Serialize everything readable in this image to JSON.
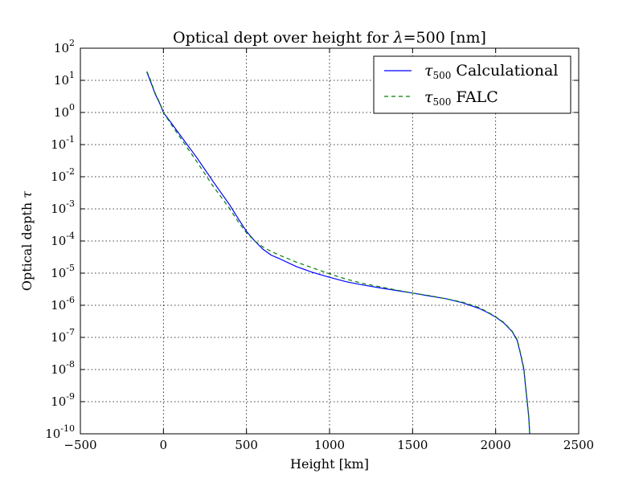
{
  "chart_data": {
    "type": "line",
    "title_prefix": "Optical dept over height for ",
    "title_symbol": "λ",
    "title_suffix": "=500 [nm]",
    "xlabel": "Height [km]",
    "ylabel_text": "Optical depth ",
    "ylabel_symbol": "τ",
    "xlim": [
      -500,
      2500
    ],
    "ylim_exponents": [
      -10,
      2
    ],
    "y_scale": "log",
    "grid": true,
    "legend_position": "top-right",
    "x_ticks": [
      "−500",
      "0",
      "500",
      "1000",
      "1500",
      "2000",
      "2500"
    ],
    "x_tick_values": [
      -500,
      0,
      500,
      1000,
      1500,
      2000,
      2500
    ],
    "y_tick_base": "10",
    "y_tick_exponents": [
      "2",
      "1",
      "0",
      "-1",
      "-2",
      "-3",
      "-4",
      "-5",
      "-6",
      "-7",
      "-8",
      "-9",
      "-10"
    ],
    "series": [
      {
        "name_symbol": "τ",
        "name_sub": "500",
        "name_text": "Calculational",
        "color": "#0000ff",
        "style": "solid",
        "x": [
          -100,
          -80,
          -50,
          -20,
          0,
          50,
          100,
          200,
          300,
          400,
          450,
          500,
          550,
          600,
          650,
          700,
          800,
          900,
          1000,
          1100,
          1200,
          1300,
          1400,
          1500,
          1600,
          1700,
          1800,
          1900,
          1950,
          2000,
          2050,
          2100,
          2130,
          2150,
          2170,
          2180,
          2190,
          2200,
          2205,
          2210,
          2215,
          2218
        ],
        "y": [
          18,
          10,
          3.8,
          1.8,
          1.0,
          0.45,
          0.2,
          0.04,
          0.007,
          0.0013,
          0.0005,
          0.0002,
          0.0001,
          5.5e-05,
          3.6e-05,
          2.8e-05,
          1.6e-05,
          1.05e-05,
          7.4e-06,
          5.4e-06,
          4.3e-06,
          3.5e-06,
          2.9e-06,
          2.4e-06,
          1.95e-06,
          1.6e-06,
          1.2e-06,
          8e-07,
          6e-07,
          4.3e-07,
          2.8e-07,
          1.5e-07,
          8e-08,
          3e-08,
          1e-08,
          3e-09,
          1e-09,
          3e-10,
          1e-10,
          5e-11,
          2e-11,
          1e-11
        ]
      },
      {
        "name_symbol": "τ",
        "name_sub": "500",
        "name_text": "FALC",
        "color": "#008000",
        "style": "dashed",
        "x": [
          -100,
          -80,
          -50,
          -20,
          0,
          50,
          100,
          200,
          300,
          400,
          450,
          500,
          550,
          600,
          650,
          700,
          800,
          900,
          1000,
          1100,
          1200,
          1300,
          1400,
          1500,
          1600,
          1700,
          1800,
          1900,
          1950,
          2000,
          2050,
          2100,
          2130,
          2150,
          2170,
          2180,
          2190,
          2200,
          2205,
          2210,
          2215,
          2218
        ],
        "y": [
          19,
          11,
          4.0,
          1.9,
          1.0,
          0.4,
          0.17,
          0.03,
          0.005,
          0.001,
          0.0004,
          0.00018,
          0.0001,
          6.5e-05,
          4.7e-05,
          3.6e-05,
          2.2e-05,
          1.45e-05,
          9.5e-06,
          6.5e-06,
          4.8e-06,
          3.8e-06,
          3e-06,
          2.4e-06,
          2e-06,
          1.6e-06,
          1.25e-06,
          8.5e-07,
          6.2e-07,
          4.4e-07,
          2.9e-07,
          1.55e-07,
          8.5e-08,
          3.2e-08,
          1.1e-08,
          3.2e-09,
          1.1e-09,
          3.2e-10,
          1e-10,
          5e-11,
          2e-11,
          1e-11
        ]
      }
    ]
  }
}
